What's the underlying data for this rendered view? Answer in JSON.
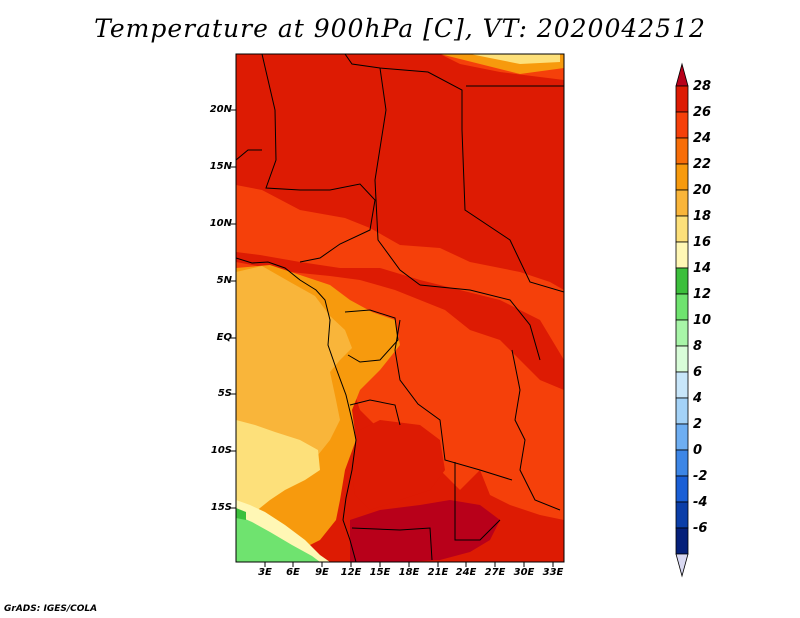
{
  "title": "Temperature at 900hPa [C], VT: 2020042512",
  "footer": "GrADS: IGES/COLA",
  "map": {
    "lon_range": [
      0,
      34
    ],
    "lat_range": [
      -20,
      25
    ],
    "lat_ticks": [
      "20N",
      "15N",
      "10N",
      "5N",
      "EQ",
      "5S",
      "10S",
      "15S"
    ],
    "lon_ticks": [
      "3E",
      "6E",
      "9E",
      "12E",
      "15E",
      "18E",
      "21E",
      "24E",
      "27E",
      "30E",
      "33E"
    ]
  },
  "colorbar": {
    "labels": [
      "28",
      "26",
      "24",
      "22",
      "20",
      "18",
      "16",
      "14",
      "12",
      "10",
      "8",
      "6",
      "4",
      "2",
      "0",
      "-2",
      "-4",
      "-6"
    ],
    "colors": [
      "#b8001a",
      "#dd1b03",
      "#f5400a",
      "#f76d08",
      "#f79a0d",
      "#f9b53a",
      "#fde07a",
      "#fff7b5",
      "#3cbf3c",
      "#6fe36f",
      "#a8f5a8",
      "#d8fcd8",
      "#c8e6fa",
      "#a4d2f7",
      "#6eaef2",
      "#3d86e6",
      "#1a5fd6",
      "#0b3ea8",
      "#05207a",
      "#d9d9f2"
    ]
  }
}
